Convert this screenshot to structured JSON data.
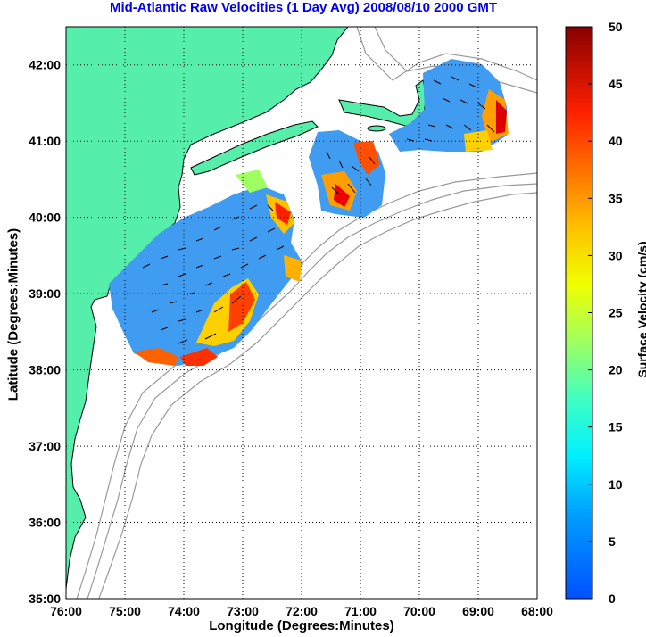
{
  "title": "Mid-Atlantic Raw Velocities (1 Day Avg) 2008/08/10 2000 GMT",
  "xlabel": "Longitude (Degrees:Minutes)",
  "ylabel": "Latitude (Degrees:Minutes)",
  "colorbar": {
    "label": "Surface Velocity (cm/s)",
    "ticks": [
      "0",
      "5",
      "10",
      "15",
      "20",
      "25",
      "30",
      "35",
      "40",
      "45",
      "50"
    ],
    "min": 0,
    "max": 50
  },
  "axes": {
    "lon_range": [
      -76,
      -68
    ],
    "lat_range": [
      35,
      42.5
    ],
    "x_ticks": [
      {
        "value": -76,
        "label": "76:00"
      },
      {
        "value": -75,
        "label": "75:00"
      },
      {
        "value": -74,
        "label": "74:00"
      },
      {
        "value": -73,
        "label": "73:00"
      },
      {
        "value": -72,
        "label": "72:00"
      },
      {
        "value": -71,
        "label": "71:00"
      },
      {
        "value": -70,
        "label": "70:00"
      },
      {
        "value": -69,
        "label": "69:00"
      },
      {
        "value": -68,
        "label": "68:00"
      }
    ],
    "y_ticks": [
      {
        "value": 35,
        "label": "35:00"
      },
      {
        "value": 36,
        "label": "36:00"
      },
      {
        "value": 37,
        "label": "37:00"
      },
      {
        "value": 38,
        "label": "38:00"
      },
      {
        "value": 39,
        "label": "39:00"
      },
      {
        "value": 40,
        "label": "40:00"
      },
      {
        "value": 41,
        "label": "41:00"
      },
      {
        "value": 42,
        "label": "42:00"
      }
    ],
    "grid": "dotted"
  },
  "colors": {
    "land": "#55eeaa",
    "coast": "#000000",
    "bathymetry": "#999999",
    "title": "#0000ee"
  }
}
